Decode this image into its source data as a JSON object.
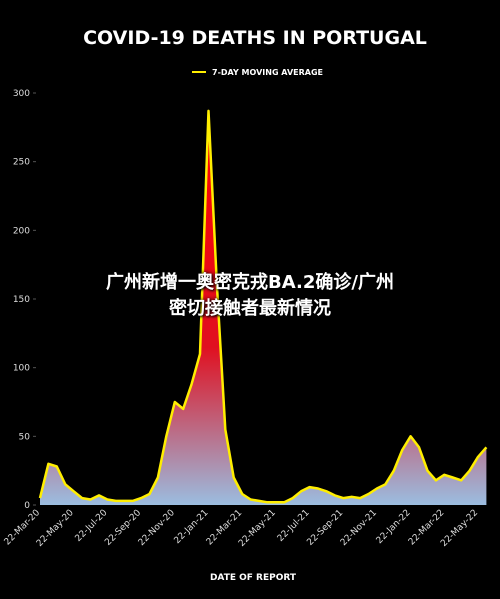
{
  "chart_data": {
    "type": "area-line",
    "title": "COVID-19 DEATHS IN PORTUGAL",
    "x_label": "DATE OF REPORT",
    "categories": [
      "22-Mar-20",
      null,
      null,
      null,
      "22-May-20",
      null,
      null,
      null,
      "22-Jul-20",
      null,
      null,
      null,
      "22-Sep-20",
      null,
      null,
      null,
      "22-Nov-20",
      null,
      null,
      null,
      "22-Jan-21",
      null,
      null,
      null,
      "22-Mar-21",
      null,
      null,
      null,
      "22-May-21",
      null,
      null,
      null,
      "22-Jul-21",
      null,
      null,
      null,
      "22-Sep-21",
      null,
      null,
      null,
      "22-Nov-21",
      null,
      null,
      null,
      "22-Jan-22",
      null,
      null,
      null,
      "22-Mar-22",
      null,
      null,
      null,
      "22-May-22",
      null
    ],
    "series": [
      {
        "name": "7-DAY MOVING AVERAGE",
        "color": "#ffee00",
        "values": [
          5,
          30,
          28,
          15,
          10,
          5,
          4,
          7,
          4,
          3,
          3,
          3,
          5,
          8,
          20,
          50,
          75,
          70,
          88,
          110,
          287,
          160,
          55,
          20,
          8,
          4,
          3,
          2,
          2,
          2,
          5,
          10,
          13,
          12,
          10,
          7,
          5,
          6,
          5,
          8,
          12,
          15,
          25,
          40,
          50,
          42,
          25,
          18,
          22,
          20,
          18,
          25,
          35,
          42
        ]
      }
    ],
    "ylim": [
      0,
      300
    ],
    "yticks": [
      0,
      50,
      100,
      150,
      200,
      250,
      300
    ]
  },
  "overlay": {
    "lines": [
      "广州新增一奥密克戎BA.2确诊/广州",
      "密切接触者最新情况"
    ]
  }
}
